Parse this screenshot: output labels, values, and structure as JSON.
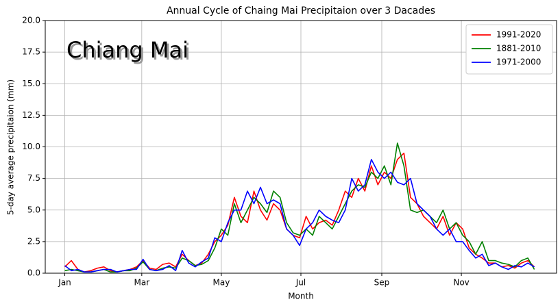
{
  "chart_data": {
    "type": "line",
    "title": "Annual Cycle of Chaing Mai Precipitaion over 3 Dacades",
    "annotation": "Chiang Mai",
    "xlabel": "Month",
    "ylabel": "5-day average precipitaion (mm)",
    "x": [
      1,
      6,
      11,
      16,
      21,
      26,
      31,
      36,
      41,
      46,
      51,
      56,
      61,
      66,
      71,
      76,
      81,
      86,
      91,
      96,
      101,
      106,
      111,
      116,
      121,
      126,
      131,
      136,
      141,
      146,
      151,
      156,
      161,
      166,
      171,
      176,
      181,
      186,
      191,
      196,
      201,
      206,
      211,
      216,
      221,
      226,
      231,
      236,
      241,
      246,
      251,
      256,
      261,
      266,
      271,
      276,
      281,
      286,
      291,
      296,
      301,
      306,
      311,
      316,
      321,
      326,
      331,
      336,
      341,
      346,
      351,
      356,
      361
    ],
    "series": [
      {
        "name": "1991-2020",
        "color": "#ff0000",
        "values": [
          0.5,
          1.0,
          0.3,
          0.1,
          0.2,
          0.4,
          0.5,
          0.2,
          0.1,
          0.2,
          0.3,
          0.5,
          1.0,
          0.4,
          0.3,
          0.7,
          0.8,
          0.5,
          1.5,
          1.0,
          0.6,
          0.8,
          1.5,
          2.5,
          3.0,
          3.8,
          6.0,
          4.5,
          4.0,
          6.5,
          5.0,
          4.2,
          5.5,
          5.0,
          3.5,
          3.0,
          2.8,
          4.5,
          3.5,
          4.0,
          4.2,
          3.8,
          5.0,
          6.5,
          6.0,
          7.5,
          6.5,
          8.5,
          7.0,
          8.0,
          7.5,
          9.0,
          9.5,
          6.0,
          5.5,
          4.5,
          4.0,
          3.5,
          4.5,
          3.0,
          4.0,
          3.5,
          2.0,
          1.5,
          1.2,
          0.8,
          0.8,
          0.5,
          0.6,
          0.4,
          0.8,
          1.0,
          0.5
        ]
      },
      {
        "name": "1881-2010",
        "color": "#008000",
        "values": [
          0.2,
          0.3,
          0.2,
          0.1,
          0.1,
          0.2,
          0.3,
          0.1,
          0.1,
          0.2,
          0.2,
          0.4,
          0.9,
          0.3,
          0.2,
          0.4,
          0.5,
          0.4,
          1.2,
          1.0,
          0.6,
          0.7,
          1.0,
          2.0,
          3.5,
          3.0,
          5.5,
          4.0,
          5.0,
          6.0,
          5.5,
          4.8,
          6.5,
          6.0,
          4.0,
          3.2,
          3.0,
          3.5,
          3.0,
          4.5,
          4.0,
          3.5,
          4.5,
          5.5,
          6.5,
          7.0,
          6.8,
          8.0,
          7.5,
          8.5,
          7.0,
          10.3,
          8.5,
          5.0,
          4.8,
          5.0,
          4.5,
          4.0,
          5.0,
          3.5,
          4.0,
          3.0,
          2.5,
          1.5,
          2.5,
          1.0,
          1.0,
          0.8,
          0.7,
          0.5,
          1.0,
          1.2,
          0.3
        ]
      },
      {
        "name": "1971-2000",
        "color": "#0000ff",
        "values": [
          0.6,
          0.2,
          0.3,
          0.1,
          0.1,
          0.2,
          0.3,
          0.3,
          0.1,
          0.2,
          0.3,
          0.3,
          1.1,
          0.3,
          0.2,
          0.3,
          0.6,
          0.2,
          1.8,
          0.8,
          0.5,
          0.9,
          1.2,
          2.8,
          2.5,
          4.0,
          5.0,
          5.0,
          6.5,
          5.5,
          6.8,
          5.5,
          5.8,
          5.5,
          3.5,
          3.0,
          2.2,
          3.5,
          4.0,
          5.0,
          4.5,
          4.2,
          4.0,
          5.0,
          7.5,
          6.5,
          7.0,
          9.0,
          8.0,
          7.5,
          8.0,
          7.2,
          7.0,
          7.5,
          5.5,
          5.0,
          4.5,
          3.5,
          3.0,
          3.5,
          2.5,
          2.5,
          1.8,
          1.2,
          1.5,
          0.6,
          0.8,
          0.5,
          0.3,
          0.6,
          0.5,
          0.8,
          0.5
        ]
      }
    ],
    "xlim": [
      -14,
      378
    ],
    "xticks": [
      {
        "value": 1,
        "label": "Jan"
      },
      {
        "value": 60,
        "label": "Mar"
      },
      {
        "value": 121,
        "label": "May"
      },
      {
        "value": 182,
        "label": "Jul"
      },
      {
        "value": 244,
        "label": "Sep"
      },
      {
        "value": 305,
        "label": "Nov"
      }
    ],
    "ylim": [
      0,
      20
    ],
    "yticks": [
      {
        "value": 0,
        "label": "0.0"
      },
      {
        "value": 2.5,
        "label": "2.5"
      },
      {
        "value": 5,
        "label": "5.0"
      },
      {
        "value": 7.5,
        "label": "7.5"
      },
      {
        "value": 10,
        "label": "10.0"
      },
      {
        "value": 12.5,
        "label": "12.5"
      },
      {
        "value": 15,
        "label": "15.0"
      },
      {
        "value": 17.5,
        "label": "17.5"
      },
      {
        "value": 20,
        "label": "20.0"
      }
    ],
    "grid": true,
    "legend": "upper right"
  }
}
